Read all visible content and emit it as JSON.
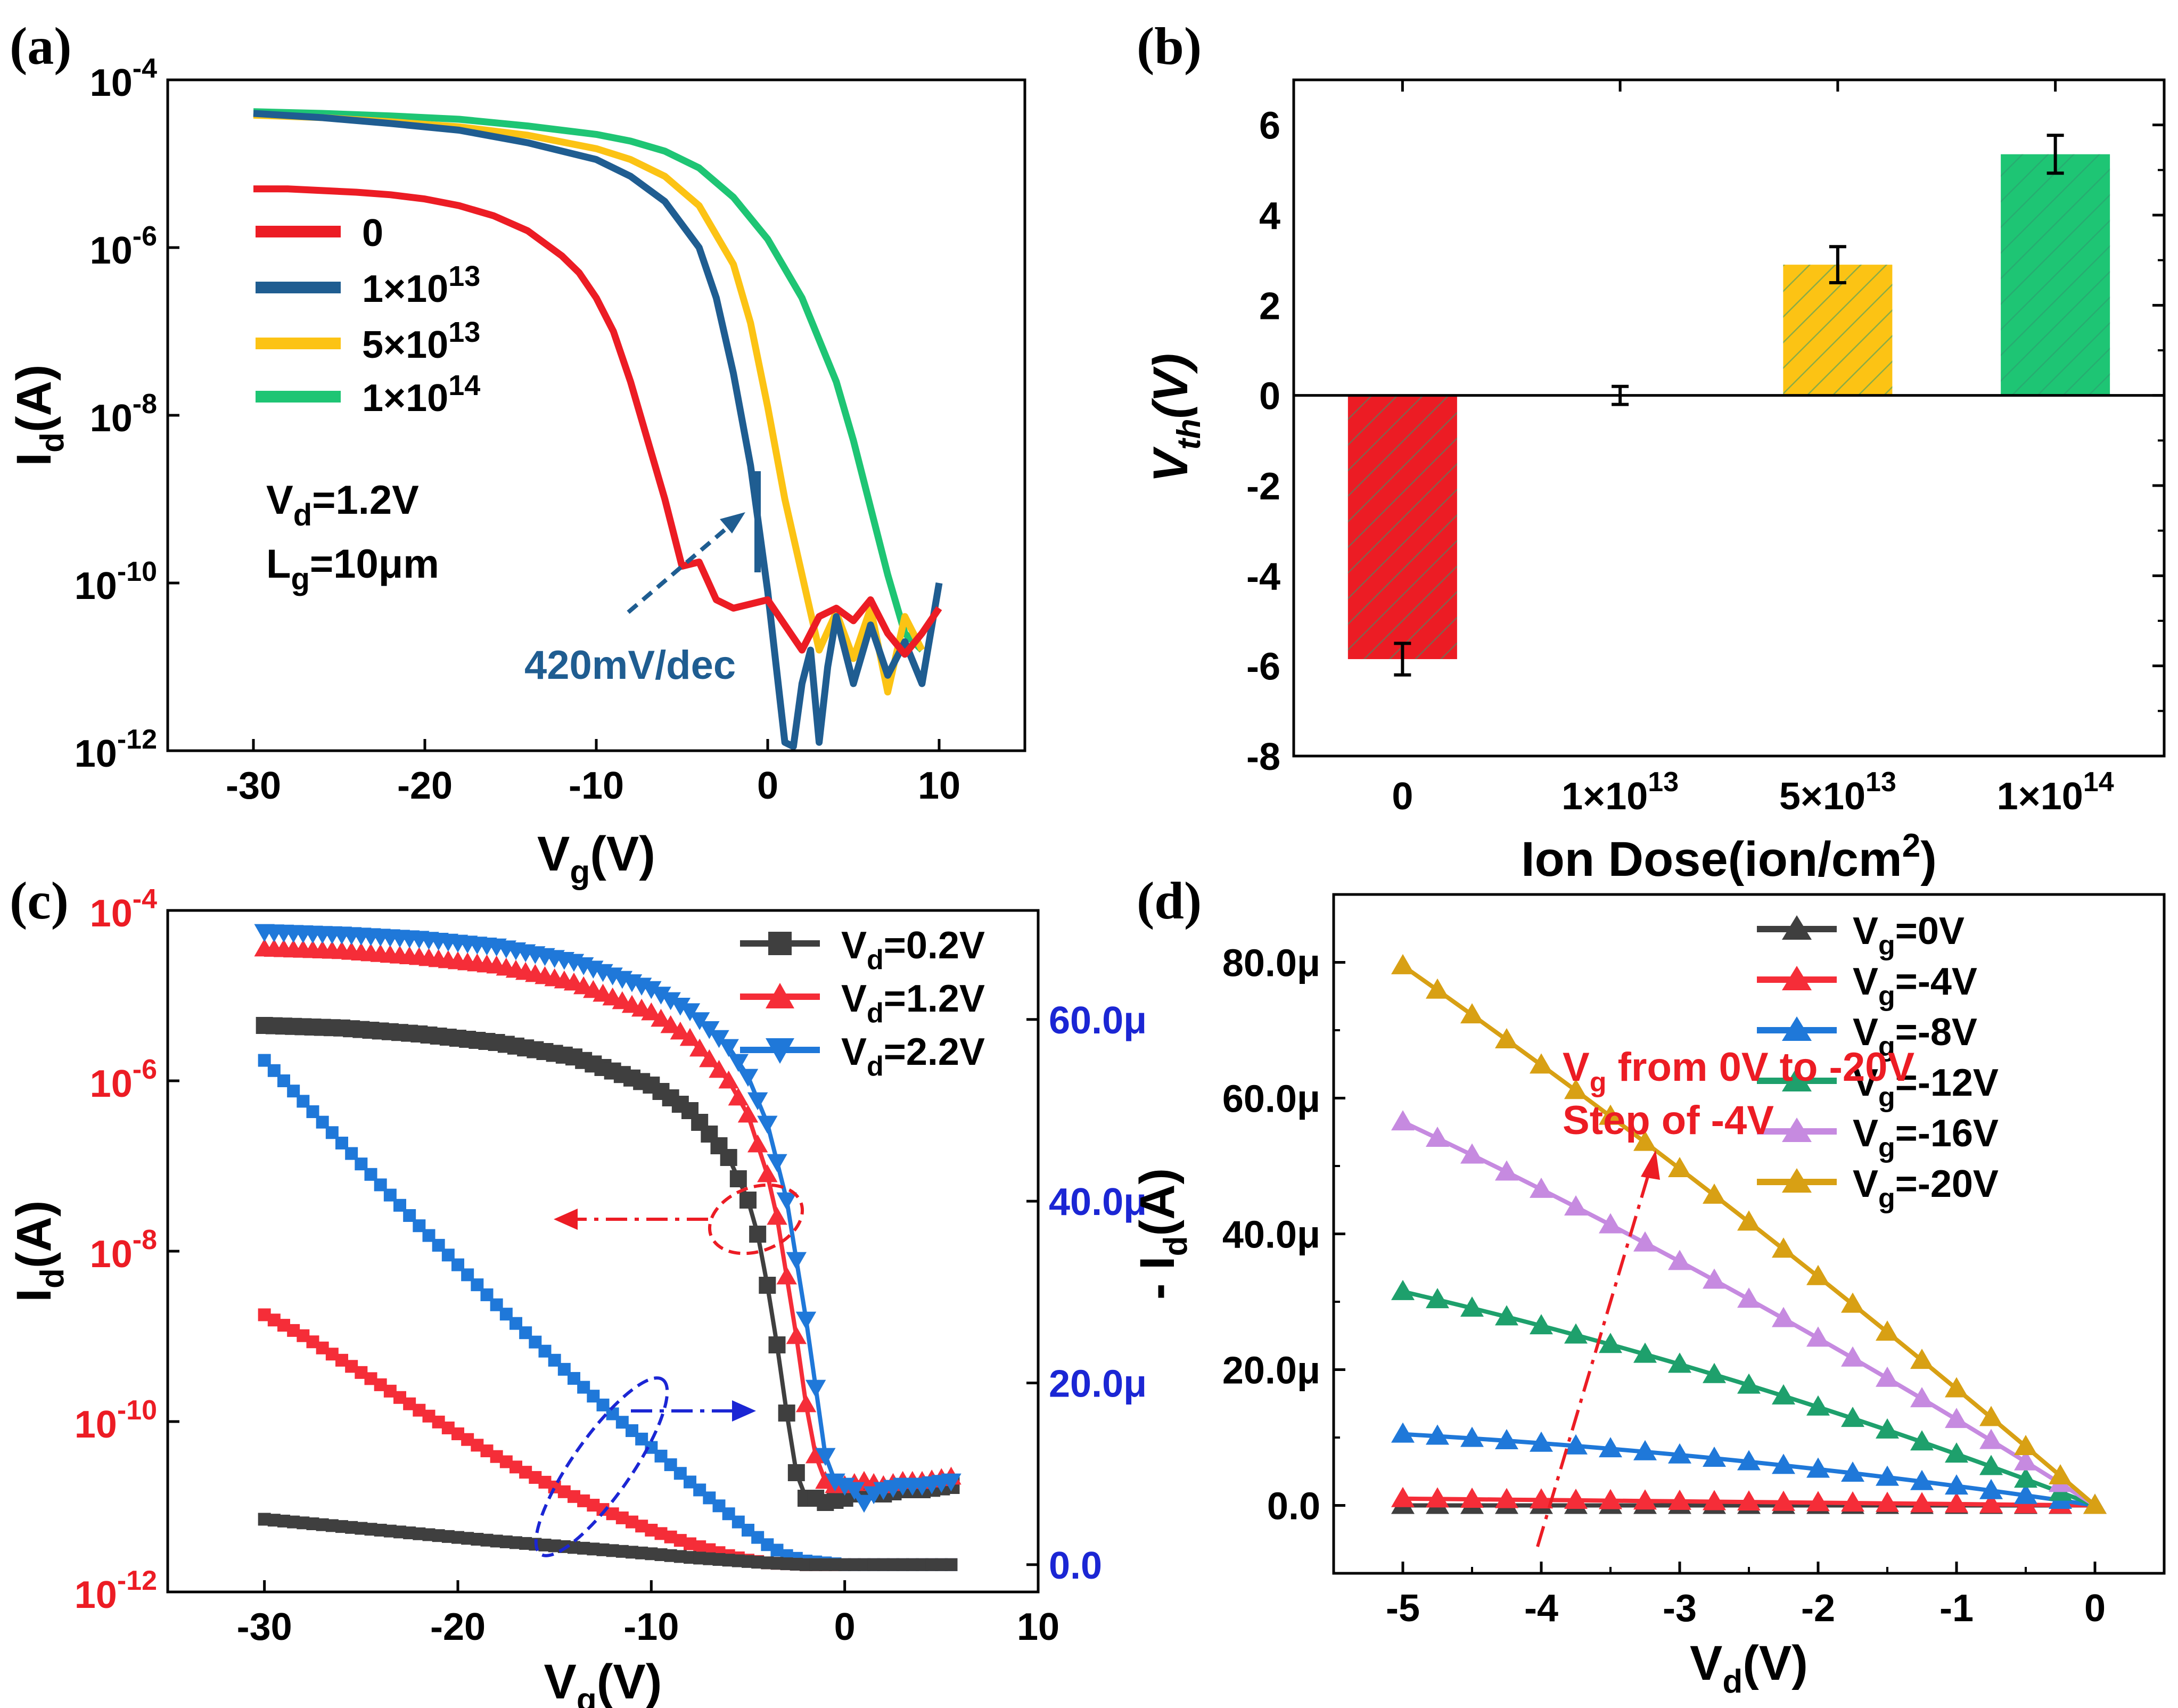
{
  "chart_data": [
    {
      "panel": "a",
      "label": "(a)",
      "type": "line",
      "xlabel": "V_g(V)",
      "ylabel": "I_d(A)",
      "xlim": [
        -35,
        15
      ],
      "ylim_log10": [
        -12,
        -4
      ],
      "xticks": [
        -30,
        -20,
        -10,
        0,
        10
      ],
      "yticks": [
        -12,
        -10,
        -8,
        -6,
        -4
      ],
      "series": [
        {
          "name": "0",
          "color": "#ec1c24",
          "x": [
            -30,
            -28,
            -26,
            -24,
            -22,
            -20,
            -18,
            -16,
            -14,
            -12,
            -11,
            -10,
            -9,
            -8,
            -7,
            -6,
            -5,
            -4,
            -3,
            -2,
            -1,
            0,
            1,
            2,
            3,
            4,
            5,
            6,
            7,
            8,
            9,
            10
          ],
          "y": [
            -5.3,
            -5.3,
            -5.32,
            -5.34,
            -5.37,
            -5.42,
            -5.5,
            -5.62,
            -5.8,
            -6.1,
            -6.3,
            -6.6,
            -7.0,
            -7.6,
            -8.3,
            -9.0,
            -9.8,
            -9.75,
            -10.2,
            -10.3,
            -10.25,
            -10.2,
            -10.5,
            -10.8,
            -10.4,
            -10.3,
            -10.45,
            -10.2,
            -10.6,
            -10.85,
            -10.6,
            -10.3
          ]
        },
        {
          "name": "1×10",
          "sup": "13",
          "color": "#1f5d91",
          "x": [
            -30,
            -26,
            -22,
            -18,
            -14,
            -10,
            -8,
            -6,
            -4,
            -3,
            -2,
            -1,
            0,
            0.5,
            1,
            1.5,
            2,
            2.5,
            3,
            3.5,
            4,
            5,
            6,
            7,
            8,
            9,
            10
          ],
          "y": [
            -4.4,
            -4.45,
            -4.52,
            -4.6,
            -4.75,
            -4.95,
            -5.15,
            -5.45,
            -6.0,
            -6.6,
            -7.5,
            -8.6,
            -10.1,
            -11.0,
            -11.9,
            -11.95,
            -11.2,
            -10.8,
            -11.9,
            -11.0,
            -10.4,
            -11.2,
            -10.5,
            -11.1,
            -10.7,
            -11.2,
            -10.0
          ]
        },
        {
          "name": "5×10",
          "sup": "13",
          "color": "#fcc314",
          "x": [
            -30,
            -26,
            -22,
            -18,
            -14,
            -10,
            -8,
            -6,
            -4,
            -2,
            -1,
            0,
            1,
            2,
            3,
            4,
            5,
            6,
            7,
            8,
            9
          ],
          "y": [
            -4.42,
            -4.45,
            -4.5,
            -4.56,
            -4.66,
            -4.82,
            -4.95,
            -5.15,
            -5.5,
            -6.2,
            -6.9,
            -7.9,
            -9.0,
            -9.9,
            -10.8,
            -10.35,
            -10.9,
            -10.3,
            -11.3,
            -10.4,
            -10.8
          ]
        },
        {
          "name": "1×10",
          "sup": "14",
          "color": "#1ec574",
          "x": [
            -30,
            -26,
            -22,
            -18,
            -14,
            -10,
            -8,
            -6,
            -4,
            -2,
            0,
            2,
            4,
            5,
            6,
            7,
            8,
            9
          ],
          "y": [
            -4.38,
            -4.4,
            -4.43,
            -4.47,
            -4.55,
            -4.65,
            -4.73,
            -4.85,
            -5.05,
            -5.4,
            -5.9,
            -6.6,
            -7.6,
            -8.3,
            -9.1,
            -9.9,
            -10.6,
            -10.8
          ]
        }
      ],
      "annotations": {
        "vd": "V",
        "vd_sub": "d",
        "vd_rest": "=1.2V",
        "lg": "L",
        "lg_sub": "g",
        "lg_rest": "=10μm",
        "slope": "420mV/dec"
      }
    },
    {
      "panel": "b",
      "label": "(b)",
      "type": "bar",
      "xlabel": "Ion Dose(ion/cm",
      "xlabel_sup": "2",
      "xlabel_end": ")",
      "ylabel": "V",
      "ylabel_sub": "th",
      "ylabel_end": "(V)",
      "ylim": [
        -8,
        7
      ],
      "yticks": [
        -8,
        -6,
        -4,
        -2,
        0,
        2,
        4,
        6
      ],
      "categories": [
        {
          "base": "0",
          "sup": ""
        },
        {
          "base": "1×10",
          "sup": "13"
        },
        {
          "base": "5×10",
          "sup": "13"
        },
        {
          "base": "1×10",
          "sup": "14"
        }
      ],
      "values": [
        -5.85,
        0.0,
        2.9,
        5.35
      ],
      "errors": [
        0.35,
        0.2,
        0.4,
        0.42
      ],
      "colors": [
        "#ec1c24",
        "#1f5d91",
        "#fcc314",
        "#1ec574"
      ]
    },
    {
      "panel": "c",
      "label": "(c)",
      "type": "scatter",
      "xlabel": "V_g(V)",
      "ylabel": "I_d(A)",
      "xlim": [
        -35,
        10
      ],
      "ylim_log10": [
        -12,
        -4
      ],
      "ylim_right": [
        -3,
        72
      ],
      "xticks": [
        -30,
        -20,
        -10,
        0,
        10
      ],
      "yticks": [
        -12,
        -10,
        -8,
        -6,
        -4
      ],
      "yticks_right": [
        "0.0",
        "20.0μ",
        "40.0μ",
        "60.0μ"
      ],
      "yticks_right_values": [
        0,
        20,
        40,
        60
      ],
      "log_series": [
        {
          "name": "V_d=0.2V",
          "marker": "square",
          "color": "#3f3f3f",
          "x": [
            -30,
            -26,
            -22,
            -18,
            -14,
            -10,
            -8,
            -6,
            -5,
            -4.5,
            -4,
            -3.5,
            -3,
            -2.5,
            -2,
            -1.5,
            -1,
            0,
            1,
            2,
            3,
            4,
            5.5
          ],
          "y": [
            -5.35,
            -5.38,
            -5.45,
            -5.55,
            -5.72,
            -6.05,
            -6.35,
            -6.9,
            -7.4,
            -7.8,
            -8.4,
            -9.1,
            -9.9,
            -10.6,
            -10.9,
            -10.9,
            -10.95,
            -10.9,
            -10.8,
            -10.85,
            -10.8,
            -10.8,
            -10.75
          ]
        },
        {
          "name": "V_d=1.2V",
          "marker": "triangle-up",
          "color": "#f52d38",
          "x": [
            -30,
            -26,
            -22,
            -18,
            -14,
            -10,
            -8,
            -6,
            -5,
            -4,
            -3.5,
            -3,
            -2.5,
            -2,
            -1.5,
            -1,
            -0.5,
            0,
            1,
            2,
            3,
            4,
            5.5
          ],
          "y": [
            -4.45,
            -4.48,
            -4.55,
            -4.65,
            -4.85,
            -5.2,
            -5.5,
            -6.0,
            -6.4,
            -7.1,
            -7.6,
            -8.3,
            -9.0,
            -9.8,
            -10.4,
            -10.7,
            -10.75,
            -10.75,
            -10.7,
            -10.75,
            -10.7,
            -10.7,
            -10.65
          ]
        },
        {
          "name": "V_d=2.2V",
          "marker": "triangle-down",
          "color": "#1f78d9",
          "x": [
            -30,
            -26,
            -22,
            -18,
            -14,
            -10,
            -8,
            -6,
            -5,
            -4,
            -3,
            -2.5,
            -2,
            -1.5,
            -1,
            -0.5,
            0,
            0.5,
            1,
            1.5,
            2,
            3,
            4,
            5.5
          ],
          "y": [
            -4.25,
            -4.28,
            -4.33,
            -4.42,
            -4.6,
            -4.92,
            -5.18,
            -5.6,
            -5.95,
            -6.5,
            -7.4,
            -8.1,
            -8.8,
            -9.6,
            -10.4,
            -10.7,
            -10.75,
            -10.8,
            -10.95,
            -10.85,
            -10.8,
            -10.75,
            -10.75,
            -10.7
          ]
        }
      ],
      "linear_series": [
        {
          "name": "V_d=1.2V linear",
          "color": "#f52d38",
          "x": [
            -30,
            -28,
            -26,
            -24,
            -22,
            -20,
            -18,
            -16,
            -14,
            -12,
            -10,
            -8,
            -6,
            -5,
            -4,
            -3,
            -2,
            0,
            2,
            4,
            5.5
          ],
          "y": [
            27.5,
            25.2,
            22.5,
            19.8,
            17.0,
            14.4,
            11.9,
            9.6,
            7.5,
            5.6,
            3.8,
            2.3,
            1.0,
            0.5,
            0.2,
            0.1,
            0.0,
            0.0,
            0.0,
            0.0,
            0.0
          ]
        },
        {
          "name": "V_d=2.2V linear",
          "color": "#1f78d9",
          "x": [
            -30,
            -28,
            -26,
            -24,
            -22,
            -20,
            -18,
            -16,
            -14,
            -12,
            -10,
            -8,
            -6,
            -5,
            -4,
            -3,
            -2,
            0,
            2,
            4,
            5.5
          ],
          "y": [
            55.5,
            51.0,
            46.4,
            41.8,
            37.3,
            33.0,
            28.6,
            24.5,
            20.5,
            16.6,
            12.9,
            9.1,
            5.6,
            3.8,
            2.2,
            1.0,
            0.4,
            0.0,
            0.0,
            0.0,
            0.0
          ]
        },
        {
          "name": "V_d=0.2V linear",
          "color": "#3f3f3f",
          "x": [
            -30,
            -26,
            -22,
            -18,
            -14,
            -10,
            -8,
            -6,
            -4,
            -2,
            0,
            2,
            4,
            5.5
          ],
          "y": [
            5.0,
            4.2,
            3.4,
            2.6,
            1.9,
            1.2,
            0.8,
            0.5,
            0.2,
            0.0,
            0.0,
            0.0,
            0.0,
            0.0
          ]
        }
      ],
      "legend": [
        {
          "base": "V",
          "sub": "d",
          "rest": "=0.2V"
        },
        {
          "base": "V",
          "sub": "d",
          "rest": "=1.2V"
        },
        {
          "base": "V",
          "sub": "d",
          "rest": "=2.2V"
        }
      ]
    },
    {
      "panel": "d",
      "label": "(d)",
      "type": "line",
      "xlabel": "V_d(V)",
      "ylabel": "- I_d(A)",
      "xlim": [
        -5.5,
        0.5
      ],
      "ylim": [
        -10,
        90
      ],
      "xticks": [
        -5,
        -4,
        -3,
        -2,
        -1,
        0
      ],
      "yticks": [
        "0.0",
        "20.0μ",
        "40.0μ",
        "60.0μ",
        "80.0μ"
      ],
      "yticks_values": [
        0,
        20,
        40,
        60,
        80
      ],
      "series": [
        {
          "name": "V_g=0V",
          "base": "V",
          "sub": "g",
          "rest": "=0V",
          "color": "#3f3f3f",
          "y_at_minus5": 0.0,
          "shape": 1.0
        },
        {
          "name": "V_g=-4V",
          "base": "V",
          "sub": "g",
          "rest": "=-4V",
          "color": "#f52d38",
          "y_at_minus5": 1.0,
          "shape": 1.0
        },
        {
          "name": "V_g=-8V",
          "base": "V",
          "sub": "g",
          "rest": "=-8V",
          "color": "#1f78d9",
          "y_at_minus5": 10.5,
          "shape": 0.55
        },
        {
          "name": "V_g=-12V",
          "base": "V",
          "sub": "g",
          "rest": "=-12V",
          "color": "#1ea06c",
          "y_at_minus5": 31.5,
          "shape": 0.75
        },
        {
          "name": "V_g=-16V",
          "base": "V",
          "sub": "g",
          "rest": "=-16V",
          "color": "#c68ae0",
          "y_at_minus5": 56.5,
          "shape": 0.85
        },
        {
          "name": "V_g=-20V",
          "base": "V",
          "sub": "g",
          "rest": "=-20V",
          "color": "#d8a014",
          "y_at_minus5": 79.5,
          "shape": 0.9
        }
      ],
      "x_points": [
        -5,
        -4.75,
        -4.5,
        -4.25,
        -4,
        -3.75,
        -3.5,
        -3.25,
        -3,
        -2.75,
        -2.5,
        -2.25,
        -2,
        -1.75,
        -1.5,
        -1.25,
        -1,
        -0.75,
        -0.5,
        -0.25,
        0
      ],
      "annotations": {
        "line1_base": "V",
        "line1_sub": "g",
        "line1_rest": " from 0V to -20V",
        "line2": "Step of -4V"
      }
    }
  ]
}
